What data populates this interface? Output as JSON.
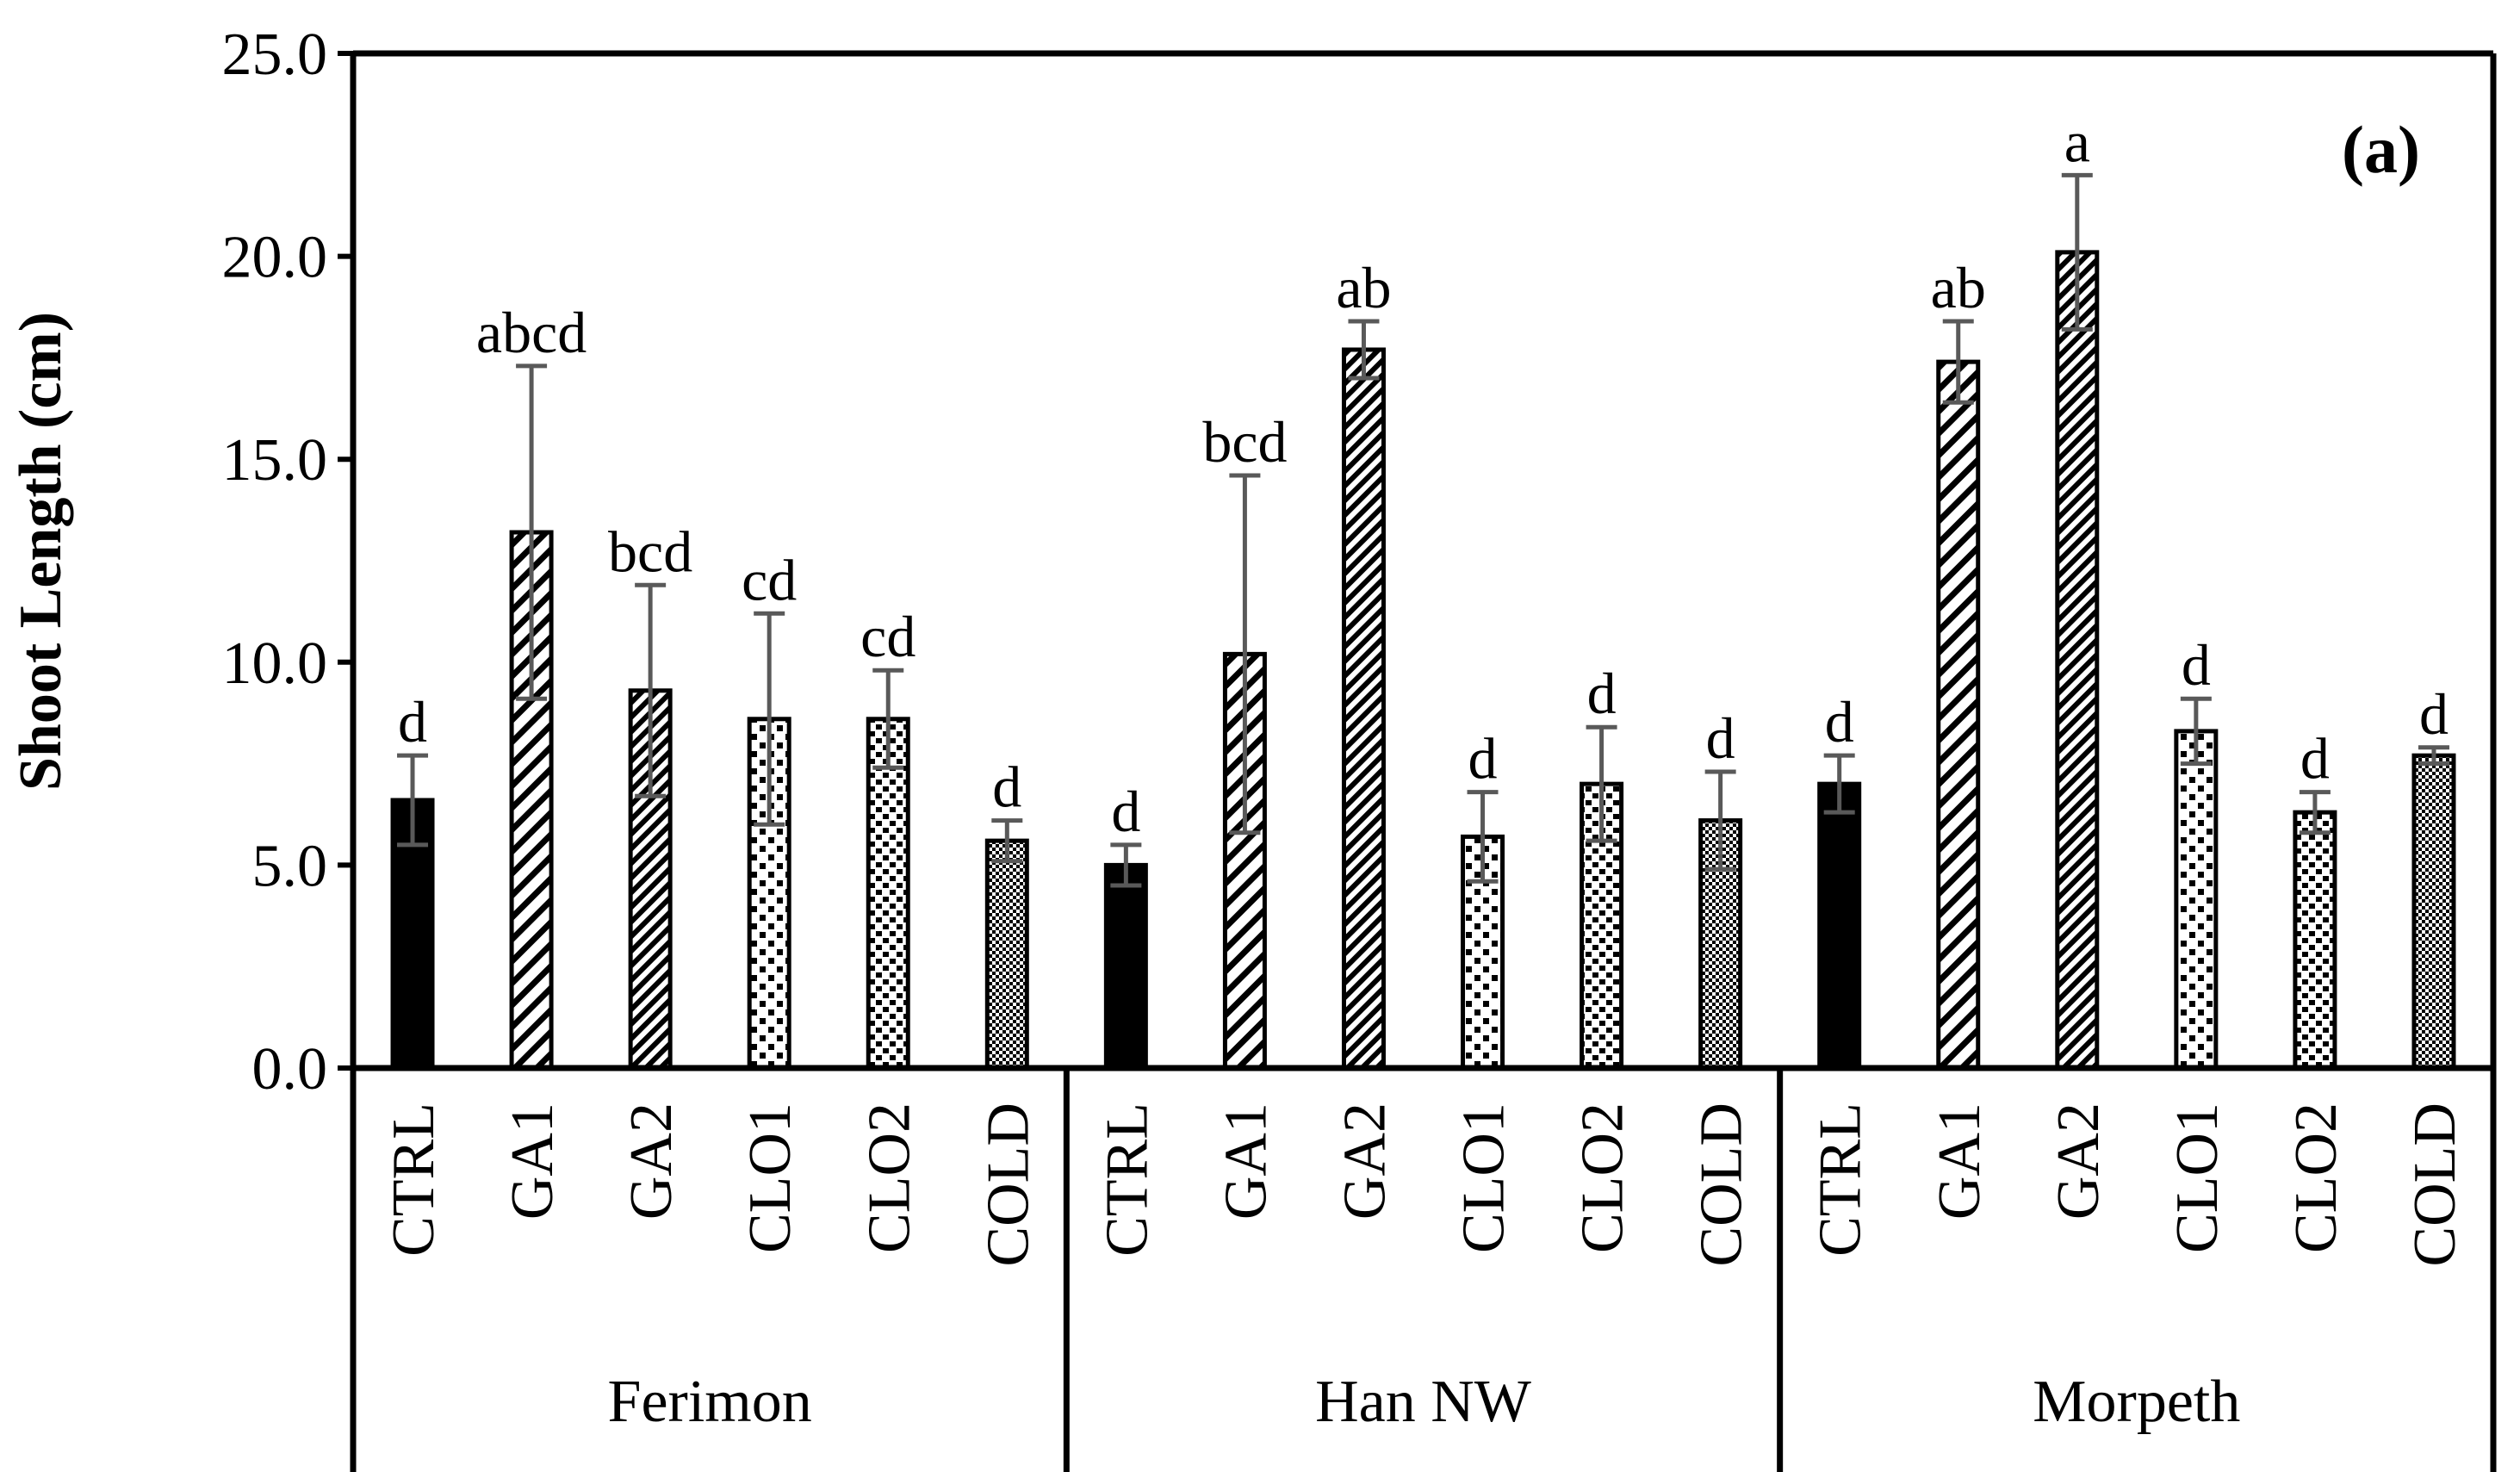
{
  "chart_data": {
    "type": "bar",
    "panel_label": "(a)",
    "title": "",
    "xlabel": "",
    "ylabel": "Shoot Length (cm)",
    "ylim": [
      0,
      25
    ],
    "yticks": [
      "0.0",
      "5.0",
      "10.0",
      "15.0",
      "20.0",
      "25.0"
    ],
    "grid": false,
    "treatments": [
      "CTRL",
      "GA1",
      "GA2",
      "CLO1",
      "CLO2",
      "COLD"
    ],
    "groups": [
      {
        "name": "Ferimon",
        "values": [
          6.6,
          13.2,
          9.3,
          8.6,
          8.6,
          5.6
        ],
        "errors": [
          1.1,
          4.1,
          2.6,
          2.6,
          1.2,
          0.5
        ],
        "letters": [
          "d",
          "abcd",
          "bcd",
          "cd",
          "cd",
          "d"
        ]
      },
      {
        "name": "Han NW",
        "values": [
          5.0,
          10.2,
          17.7,
          5.7,
          7.0,
          6.1
        ],
        "errors": [
          0.5,
          4.4,
          0.7,
          1.1,
          1.4,
          1.2
        ],
        "letters": [
          "d",
          "bcd",
          "ab",
          "d",
          "d",
          "d"
        ]
      },
      {
        "name": "Morpeth",
        "values": [
          7.0,
          17.4,
          20.1,
          8.3,
          6.3,
          7.7
        ],
        "errors": [
          0.7,
          1.0,
          1.9,
          0.8,
          0.5,
          0.2
        ],
        "letters": [
          "d",
          "ab",
          "a",
          "d",
          "d",
          "d"
        ]
      }
    ],
    "colors": {
      "bar_stroke": "#000000",
      "fill": "#000000",
      "error_bar": "#595959",
      "axis": "#000000",
      "background": "#ffffff"
    },
    "patterns": [
      "solid",
      "diagonal-wide",
      "diagonal-dense",
      "dots",
      "dots-dense",
      "checker"
    ]
  }
}
